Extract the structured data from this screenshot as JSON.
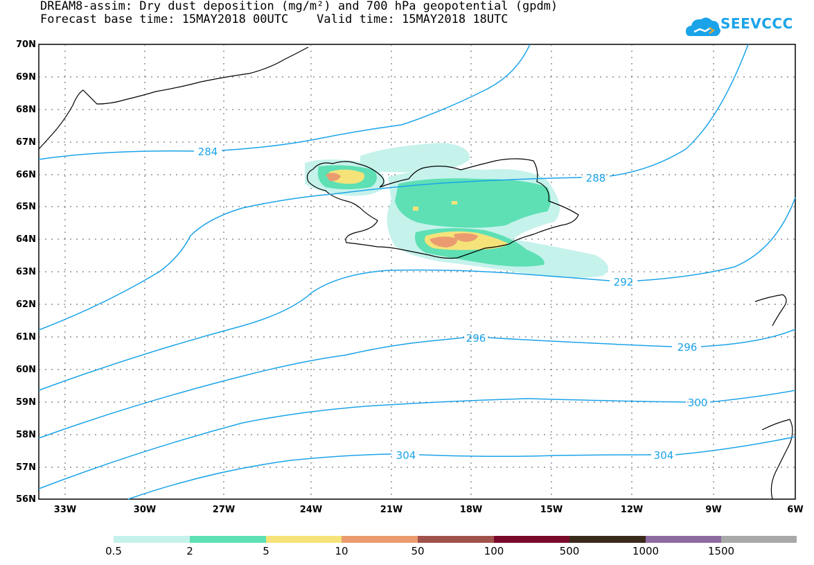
{
  "header": {
    "title_line1": "DREAM8-assim: Dry dust deposition (mg/m²) and 700 hPa geopotential (gpdm)",
    "title_line2": "Forecast base time: 15MAY2018 00UTC    Valid time: 15MAY2018 18UTC",
    "logo_text": "SEEVCCC"
  },
  "map": {
    "lat_labels": [
      "70N",
      "69N",
      "68N",
      "67N",
      "66N",
      "65N",
      "64N",
      "63N",
      "62N",
      "61N",
      "60N",
      "59N",
      "58N",
      "57N",
      "56N"
    ],
    "lon_labels": [
      "33W",
      "30W",
      "27W",
      "24W",
      "21W",
      "18W",
      "15W",
      "12W",
      "9W",
      "6W"
    ],
    "contour_labels": [
      "284",
      "288",
      "292",
      "296",
      "296",
      "300",
      "304",
      "304"
    ]
  },
  "legend": {
    "labels": [
      "0.5",
      "2",
      "5",
      "10",
      "50",
      "100",
      "500",
      "1000",
      "1500"
    ],
    "colors": [
      "#c6f2ec",
      "#5ee0b4",
      "#f5e37a",
      "#ea9c70",
      "#a0524a",
      "#7a0a2a",
      "#3a2a1a",
      "#8c6aa0",
      "#a8a8a8"
    ]
  },
  "colors": {
    "contour": "#1aa3e8"
  }
}
